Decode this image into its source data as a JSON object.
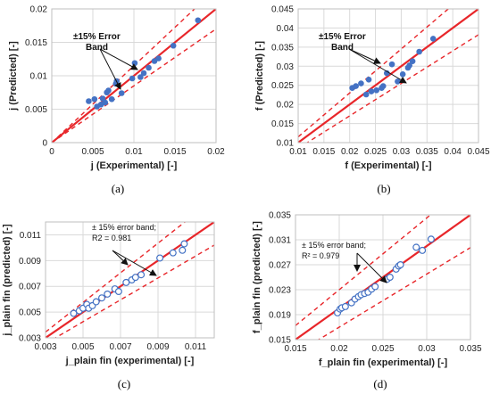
{
  "chart_data": [
    {
      "panel": "(a)",
      "type": "scatter",
      "xlabel": "j (Experimental) [-]",
      "ylabel": "j (Predicted) [-]",
      "xlim": [
        0,
        0.02
      ],
      "ylim": [
        0,
        0.02
      ],
      "xticks": [
        "0",
        "0.005",
        "0.01",
        "0.015",
        "0.02"
      ],
      "yticks": [
        "0",
        "0.005",
        "0.01",
        "0.015",
        "0.02"
      ],
      "annotation": [
        "±15% Error",
        "Band"
      ],
      "reference_lines": {
        "identity": true,
        "band_pct": 15
      },
      "marker": "filled-circle",
      "marker_color": "#4472C4",
      "line_color": "#E8262A",
      "grid": true,
      "points": [
        [
          0.0045,
          0.0062
        ],
        [
          0.0052,
          0.0065
        ],
        [
          0.0055,
          0.0054
        ],
        [
          0.006,
          0.0057
        ],
        [
          0.0062,
          0.0066
        ],
        [
          0.0065,
          0.006
        ],
        [
          0.0067,
          0.0075
        ],
        [
          0.0069,
          0.0078
        ],
        [
          0.0073,
          0.0065
        ],
        [
          0.0078,
          0.0088
        ],
        [
          0.0079,
          0.0092
        ],
        [
          0.0085,
          0.0074
        ],
        [
          0.0098,
          0.0096
        ],
        [
          0.0101,
          0.0119
        ],
        [
          0.0108,
          0.0098
        ],
        [
          0.0112,
          0.0104
        ],
        [
          0.0118,
          0.0112
        ],
        [
          0.0125,
          0.0122
        ],
        [
          0.013,
          0.0126
        ],
        [
          0.0148,
          0.0145
        ],
        [
          0.0178,
          0.0183
        ]
      ]
    },
    {
      "panel": "(b)",
      "type": "scatter",
      "xlabel": "f (Experimental) [-]",
      "ylabel": "f (Predicted) [-]",
      "xlim": [
        0.01,
        0.045
      ],
      "ylim": [
        0.01,
        0.045
      ],
      "xticks": [
        "0.01",
        "0.015",
        "0.02",
        "0.025",
        "0.03",
        "0.035",
        "0.04",
        "0.045"
      ],
      "yticks": [
        "0.01",
        "0.015",
        "0.02",
        "0.025",
        "0.03",
        "0.035",
        "0.04",
        "0.045"
      ],
      "annotation": [
        "±15% Error",
        "Band"
      ],
      "reference_lines": {
        "identity": true,
        "band_pct": 15
      },
      "marker": "filled-circle",
      "marker_color": "#4472C4",
      "line_color": "#E8262A",
      "grid": true,
      "points": [
        [
          0.0205,
          0.0243
        ],
        [
          0.0212,
          0.0248
        ],
        [
          0.0222,
          0.0255
        ],
        [
          0.0232,
          0.0226
        ],
        [
          0.0237,
          0.0265
        ],
        [
          0.0242,
          0.0234
        ],
        [
          0.0252,
          0.0237
        ],
        [
          0.0262,
          0.0243
        ],
        [
          0.0265,
          0.0248
        ],
        [
          0.0272,
          0.0282
        ],
        [
          0.0282,
          0.0305
        ],
        [
          0.0293,
          0.026
        ],
        [
          0.0303,
          0.0279
        ],
        [
          0.0313,
          0.0296
        ],
        [
          0.0316,
          0.0302
        ],
        [
          0.0322,
          0.0313
        ],
        [
          0.0335,
          0.0338
        ],
        [
          0.0362,
          0.0372
        ]
      ]
    },
    {
      "panel": "(c)",
      "type": "scatter",
      "xlabel": "j_plain fin (experimental) [-]",
      "ylabel": "j_plain fin (predicted) [-]",
      "xlim": [
        0.003,
        0.012
      ],
      "ylim": [
        0.003,
        0.012
      ],
      "xticks": [
        "0.003",
        "0.005",
        "0.007",
        "0.009",
        "0.011"
      ],
      "yticks": [
        "0.003",
        "0.005",
        "0.007",
        "0.009",
        "0.011"
      ],
      "annotation": [
        "± 15% error band;",
        "R2 = 0.981"
      ],
      "r2": 0.981,
      "reference_lines": {
        "identity": true,
        "band_pct": 15
      },
      "marker": "open-circle",
      "marker_color": "#4472C4",
      "line_color": "#E8262A",
      "grid": true,
      "points": [
        [
          0.0045,
          0.0049
        ],
        [
          0.0048,
          0.0051
        ],
        [
          0.005,
          0.0053
        ],
        [
          0.0052,
          0.0056
        ],
        [
          0.0053,
          0.0053
        ],
        [
          0.0055,
          0.0055
        ],
        [
          0.0057,
          0.0058
        ],
        [
          0.006,
          0.0061
        ],
        [
          0.0063,
          0.0064
        ],
        [
          0.0067,
          0.0068
        ],
        [
          0.0069,
          0.0066
        ],
        [
          0.0073,
          0.0073
        ],
        [
          0.0076,
          0.0075
        ],
        [
          0.0078,
          0.0077
        ],
        [
          0.0081,
          0.0079
        ],
        [
          0.0091,
          0.0092
        ],
        [
          0.0098,
          0.0096
        ],
        [
          0.0103,
          0.0098
        ],
        [
          0.0104,
          0.0103
        ]
      ]
    },
    {
      "panel": "(d)",
      "type": "scatter",
      "xlabel": "f_plain fin (experimental) [-]",
      "ylabel": "f_plain fin (predicted) [-]",
      "xlim": [
        0.015,
        0.035
      ],
      "ylim": [
        0.015,
        0.035
      ],
      "xticks": [
        "0.015",
        "0.02",
        "0.025",
        "0.03",
        "0.035"
      ],
      "yticks": [
        "0.015",
        "0.019",
        "0.023",
        "0.027",
        "0.031",
        "0.035"
      ],
      "annotation": [
        "± 15% error band;",
        "R² = 0.979"
      ],
      "r2": 0.979,
      "reference_lines": {
        "identity": true,
        "band_pct": 15
      },
      "marker": "open-circle",
      "marker_color": "#4472C4",
      "line_color": "#E8262A",
      "grid": true,
      "points": [
        [
          0.0198,
          0.0193
        ],
        [
          0.0201,
          0.0199
        ],
        [
          0.0203,
          0.0201
        ],
        [
          0.0207,
          0.0203
        ],
        [
          0.0214,
          0.0209
        ],
        [
          0.0218,
          0.0215
        ],
        [
          0.0222,
          0.0219
        ],
        [
          0.0225,
          0.0222
        ],
        [
          0.0229,
          0.0224
        ],
        [
          0.0233,
          0.0226
        ],
        [
          0.0237,
          0.0231
        ],
        [
          0.0241,
          0.0235
        ],
        [
          0.0255,
          0.0247
        ],
        [
          0.0258,
          0.025
        ],
        [
          0.0265,
          0.0263
        ],
        [
          0.0268,
          0.0268
        ],
        [
          0.027,
          0.027
        ],
        [
          0.0288,
          0.0298
        ],
        [
          0.0295,
          0.0293
        ],
        [
          0.0305,
          0.0311
        ]
      ]
    }
  ]
}
